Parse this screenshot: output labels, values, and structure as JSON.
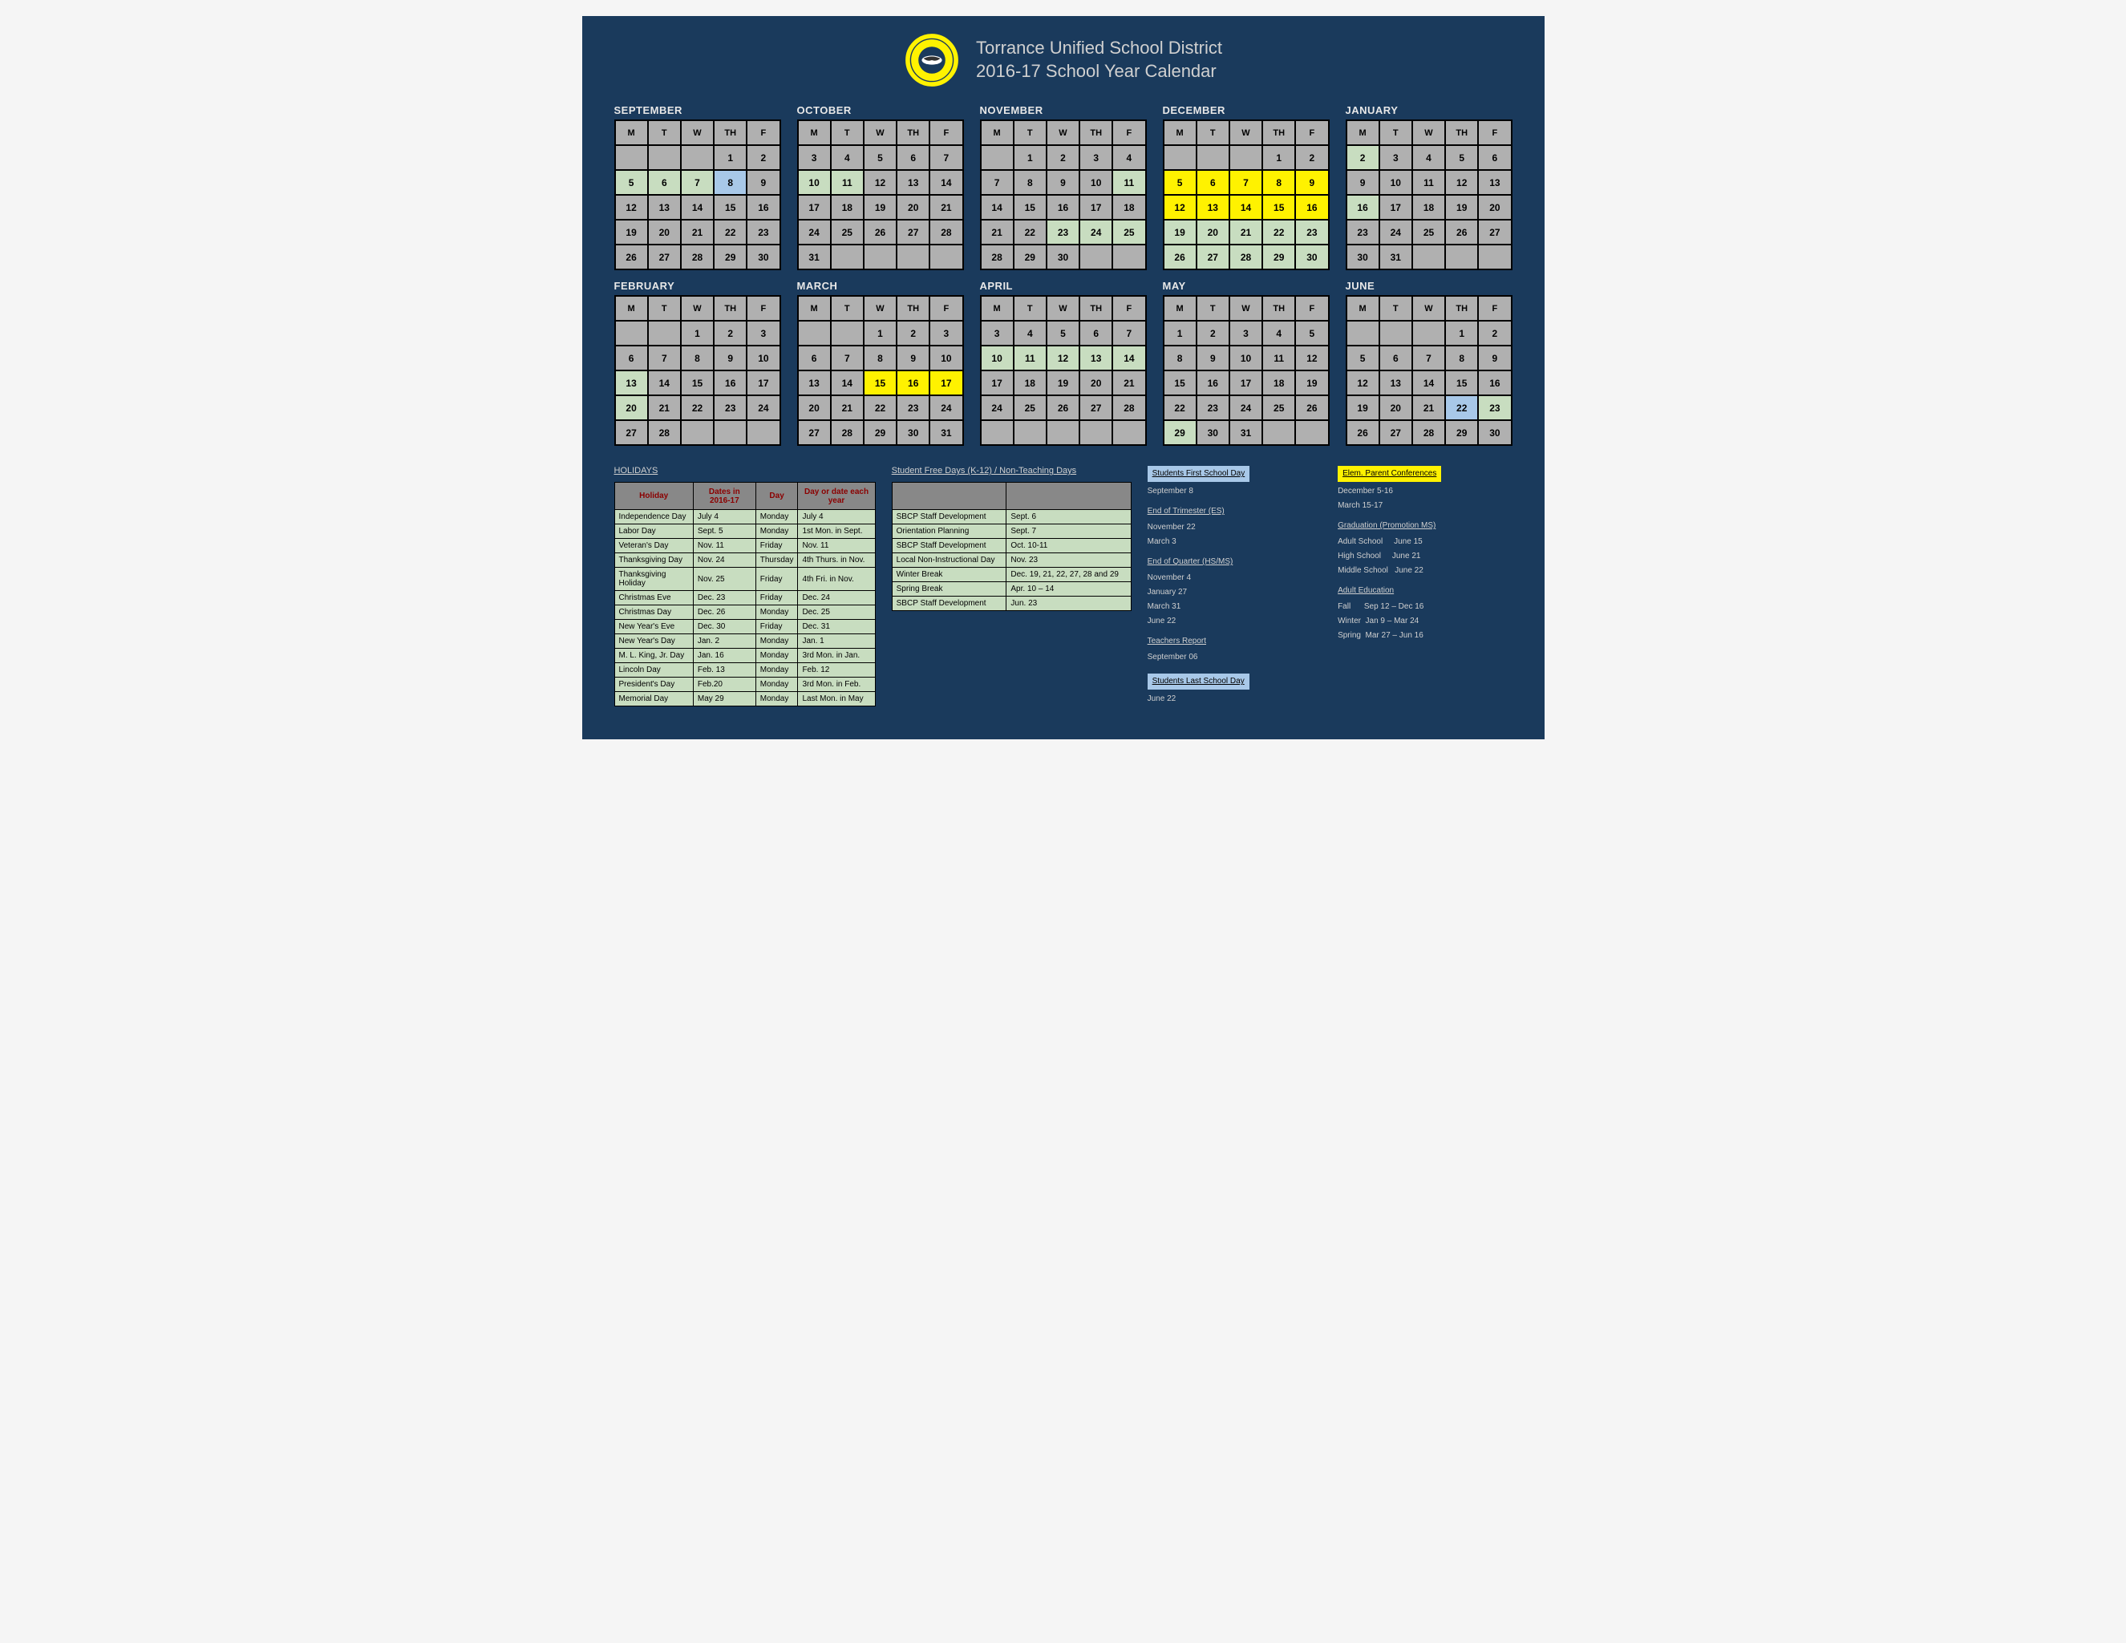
{
  "header": {
    "title1": "Torrance Unified School District",
    "title2": "2016-17 School Year Calendar"
  },
  "dayHeaders": [
    "M",
    "T",
    "W",
    "TH",
    "F"
  ],
  "colors": {
    "gray": "#b0b0b0",
    "green": "#c8ddc0",
    "blue": "#a8c8e8",
    "yellow": "#fff200",
    "dark": "#1a3a5c"
  },
  "months": [
    {
      "name": "SEPTEMBER",
      "cells": [
        [
          "",
          "",
          "",
          "1",
          "2"
        ],
        [
          "5:green",
          "6:green",
          "7:green",
          "8:blue",
          "9"
        ],
        [
          "12",
          "13",
          "14",
          "15",
          "16"
        ],
        [
          "19",
          "20",
          "21",
          "22",
          "23"
        ],
        [
          "26",
          "27",
          "28",
          "29",
          "30"
        ]
      ]
    },
    {
      "name": "OCTOBER",
      "cells": [
        [
          "3",
          "4",
          "5",
          "6",
          "7"
        ],
        [
          "10:green",
          "11:green",
          "12",
          "13",
          "14"
        ],
        [
          "17",
          "18",
          "19",
          "20",
          "21"
        ],
        [
          "24",
          "25",
          "26",
          "27",
          "28"
        ],
        [
          "31",
          "",
          "",
          "",
          ""
        ]
      ]
    },
    {
      "name": "NOVEMBER",
      "cells": [
        [
          "",
          "1",
          "2",
          "3",
          "4"
        ],
        [
          "7",
          "8",
          "9",
          "10",
          "11:green"
        ],
        [
          "14",
          "15",
          "16",
          "17",
          "18"
        ],
        [
          "21",
          "22",
          "23:green",
          "24:green",
          "25:green"
        ],
        [
          "28",
          "29",
          "30",
          "",
          ""
        ]
      ]
    },
    {
      "name": "DECEMBER",
      "cells": [
        [
          "",
          "",
          "",
          "1",
          "2"
        ],
        [
          "5:yellow",
          "6:yellow",
          "7:yellow",
          "8:yellow",
          "9:yellow"
        ],
        [
          "12:yellow",
          "13:yellow",
          "14:yellow",
          "15:yellow",
          "16:yellow"
        ],
        [
          "19:green",
          "20:green",
          "21:green",
          "22:green",
          "23:green"
        ],
        [
          "26:green",
          "27:green",
          "28:green",
          "29:green",
          "30:green"
        ]
      ]
    },
    {
      "name": "JANUARY",
      "cells": [
        [
          "2:green",
          "3",
          "4",
          "5",
          "6"
        ],
        [
          "9",
          "10",
          "11",
          "12",
          "13"
        ],
        [
          "16:green",
          "17",
          "18",
          "19",
          "20"
        ],
        [
          "23",
          "24",
          "25",
          "26",
          "27"
        ],
        [
          "30",
          "31",
          "",
          "",
          ""
        ]
      ]
    },
    {
      "name": "FEBRUARY",
      "cells": [
        [
          "",
          "",
          "1",
          "2",
          "3"
        ],
        [
          "6",
          "7",
          "8",
          "9",
          "10"
        ],
        [
          "13:green",
          "14",
          "15",
          "16",
          "17"
        ],
        [
          "20:green",
          "21",
          "22",
          "23",
          "24"
        ],
        [
          "27",
          "28",
          "",
          "",
          ""
        ]
      ]
    },
    {
      "name": "MARCH",
      "cells": [
        [
          "",
          "",
          "1",
          "2",
          "3"
        ],
        [
          "6",
          "7",
          "8",
          "9",
          "10"
        ],
        [
          "13",
          "14",
          "15:yellow",
          "16:yellow",
          "17:yellow"
        ],
        [
          "20",
          "21",
          "22",
          "23",
          "24"
        ],
        [
          "27",
          "28",
          "29",
          "30",
          "31"
        ]
      ]
    },
    {
      "name": "APRIL",
      "cells": [
        [
          "3",
          "4",
          "5",
          "6",
          "7"
        ],
        [
          "10:green",
          "11:green",
          "12:green",
          "13:green",
          "14:green"
        ],
        [
          "17",
          "18",
          "19",
          "20",
          "21"
        ],
        [
          "24",
          "25",
          "26",
          "27",
          "28"
        ],
        [
          "",
          "",
          "",
          "",
          ""
        ]
      ]
    },
    {
      "name": "MAY",
      "cells": [
        [
          "1",
          "2",
          "3",
          "4",
          "5"
        ],
        [
          "8",
          "9",
          "10",
          "11",
          "12"
        ],
        [
          "15",
          "16",
          "17",
          "18",
          "19"
        ],
        [
          "22",
          "23",
          "24",
          "25",
          "26"
        ],
        [
          "29:green",
          "30",
          "31",
          "",
          ""
        ]
      ]
    },
    {
      "name": "JUNE",
      "cells": [
        [
          "",
          "",
          "",
          "1",
          "2"
        ],
        [
          "5",
          "6",
          "7",
          "8",
          "9"
        ],
        [
          "12",
          "13",
          "14",
          "15",
          "16"
        ],
        [
          "19",
          "20",
          "21",
          "22:blue",
          "23:green"
        ],
        [
          "26",
          "27",
          "28",
          "29",
          "30"
        ]
      ]
    }
  ],
  "holidaysTitle": "HOLIDAYS",
  "holidaysHeaders": [
    "Holiday",
    "Dates in 2016-17",
    "Day",
    "Day or date each year"
  ],
  "holidays": [
    [
      "Independence Day",
      "July 4",
      "Monday",
      "July 4"
    ],
    [
      "Labor Day",
      "Sept. 5",
      "Monday",
      "1st Mon. in Sept."
    ],
    [
      "Veteran's Day",
      "Nov. 11",
      "Friday",
      "Nov. 11"
    ],
    [
      "Thanksgiving Day",
      "Nov. 24",
      "Thursday",
      "4th Thurs. in Nov."
    ],
    [
      "Thanksgiving Holiday",
      "Nov. 25",
      "Friday",
      "4th Fri. in Nov."
    ],
    [
      "Christmas Eve",
      "Dec. 23",
      "Friday",
      "Dec. 24"
    ],
    [
      "Christmas Day",
      "Dec. 26",
      "Monday",
      "Dec. 25"
    ],
    [
      "New Year's Eve",
      "Dec. 30",
      "Friday",
      "Dec. 31"
    ],
    [
      "New Year's Day",
      "Jan. 2",
      "Monday",
      "Jan. 1"
    ],
    [
      "M. L. King, Jr. Day",
      "Jan. 16",
      "Monday",
      "3rd Mon. in Jan."
    ],
    [
      "Lincoln Day",
      "Feb. 13",
      "Monday",
      "Feb. 12"
    ],
    [
      "President's Day",
      "Feb.20",
      "Monday",
      "3rd Mon. in Feb."
    ],
    [
      "Memorial Day",
      "May 29",
      "Monday",
      "Last Mon. in May"
    ]
  ],
  "studentFreeTitle": "Student Free Days (K-12) / Non-Teaching Days",
  "studentFree": [
    [
      "SBCP Staff Development",
      "Sept. 6"
    ],
    [
      "Orientation Planning",
      "Sept. 7"
    ],
    [
      "SBCP Staff Development",
      "Oct. 10-11"
    ],
    [
      "Local Non-Instructional Day",
      "Nov. 23"
    ],
    [
      "Winter Break",
      "Dec. 19, 21, 22, 27, 28 and 29"
    ],
    [
      "Spring Break",
      "Apr. 10 – 14"
    ],
    [
      "SBCP Staff Development",
      "Jun. 23"
    ]
  ],
  "legend": {
    "firstDay": {
      "label": "Students First School Day",
      "text": "September 8"
    },
    "conferences": {
      "label": "Elem. Parent Conferences",
      "text1": "December 5-16",
      "text2": "March 15-17"
    },
    "endTrimester": {
      "title": "End of Trimester (ES)",
      "lines": [
        "November 22",
        "March 3"
      ]
    },
    "endQuarter": {
      "title": "End of Quarter (HS/MS)",
      "lines": [
        "November 4",
        "January  27",
        "March 31",
        "June 22"
      ]
    },
    "teachersReport": {
      "title": "Teachers Report",
      "lines": [
        "September 06"
      ]
    },
    "lastDay": {
      "label": "Students Last School Day",
      "text": "June 22"
    },
    "graduation": {
      "title": "Graduation (Promotion MS)",
      "lines": [
        "Adult School     June 15",
        "High School     June 21",
        "Middle School   June 22"
      ]
    },
    "adultEd": {
      "title": "Adult Education",
      "lines": [
        "Fall      Sep 12 – Dec 16",
        "Winter  Jan 9 – Mar 24",
        "Spring  Mar 27 – Jun 16"
      ]
    }
  }
}
